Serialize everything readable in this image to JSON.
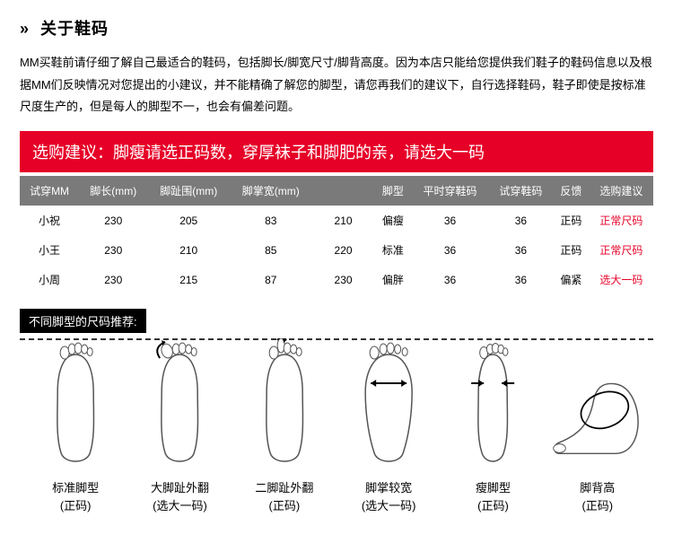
{
  "title": "关于鞋码",
  "description": "MM买鞋前请仔细了解自己最适合的鞋码，包括脚长/脚宽尺寸/脚背高度。因为本店只能给您提供我们鞋子的鞋码信息以及根据MM们反映情况对您提出的小建议，并不能精确了解您的脚型，请您再我们的建议下，自行选择鞋码，鞋子即使是按标准尺度生产的，但是每人的脚型不一，也会有偏差问题。",
  "advice_banner": "选购建议：脚瘦请选正码数，穿厚袜子和脚肥的亲，请选大一码",
  "table": {
    "columns": [
      "试穿MM",
      "脚长(mm)",
      "脚趾围(mm)",
      "脚掌宽(mm)",
      "",
      "脚型",
      "平时穿鞋码",
      "试穿鞋码",
      "反馈",
      "选购建议"
    ],
    "rows": [
      {
        "name": "小祝",
        "len": "230",
        "circ": "205",
        "width": "83",
        "blank": "210",
        "type": "偏瘦",
        "usual": "36",
        "tried": "36",
        "feedback": "正码",
        "advice": "正常尺码",
        "advice_class": "advice-normal"
      },
      {
        "name": "小王",
        "len": "230",
        "circ": "210",
        "width": "85",
        "blank": "220",
        "type": "标准",
        "usual": "36",
        "tried": "36",
        "feedback": "正码",
        "advice": "正常尺码",
        "advice_class": "advice-normal"
      },
      {
        "name": "小周",
        "len": "230",
        "circ": "215",
        "width": "87",
        "blank": "230",
        "type": "偏胖",
        "usual": "36",
        "tried": "36",
        "feedback": "偏紧",
        "advice": "选大一码",
        "advice_class": "advice-up"
      }
    ],
    "header_bg": "#7a7a7a",
    "banner_bg": "#e60027"
  },
  "subheader": "不同脚型的尺码推荐:",
  "foot_types": [
    {
      "label": "标准脚型",
      "sub": "(正码)"
    },
    {
      "label": "大脚趾外翻",
      "sub": "(选大一码)"
    },
    {
      "label": "二脚趾外翻",
      "sub": "(正码)"
    },
    {
      "label": "脚掌较宽",
      "sub": "(选大一码)"
    },
    {
      "label": "瘦脚型",
      "sub": "(正码)"
    },
    {
      "label": "脚背高",
      "sub": "(正码)"
    }
  ]
}
